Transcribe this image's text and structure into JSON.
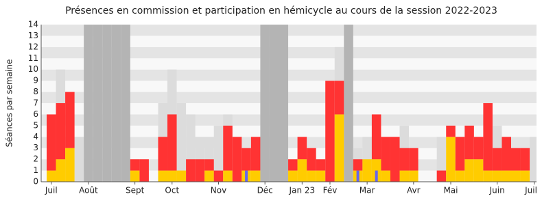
{
  "chart_data": {
    "type": "bar",
    "title": "Présences en commission et participation en hémicycle au cours de la session 2022-2023",
    "y_label": "Séances par semaine",
    "categories": [
      "Juil",
      null,
      null,
      null,
      "Août",
      null,
      null,
      null,
      null,
      "Sept",
      null,
      null,
      null,
      "Oct",
      null,
      null,
      null,
      null,
      "Nov",
      null,
      null,
      null,
      null,
      "Déc",
      null,
      null,
      null,
      "Jan 23",
      null,
      null,
      "Fév",
      null,
      null,
      null,
      "Mar",
      null,
      null,
      null,
      null,
      "Avr",
      null,
      null,
      null,
      "Mai",
      null,
      null,
      null,
      null,
      "Juin",
      null,
      null,
      null,
      "Juil"
    ],
    "series": [
      {
        "color": "#b4b4b4",
        "values": [
          null,
          null,
          null,
          null,
          14,
          14,
          14,
          14,
          14,
          null,
          null,
          null,
          null,
          null,
          null,
          null,
          null,
          null,
          null,
          null,
          null,
          null,
          null,
          14,
          14,
          14,
          null,
          null,
          null,
          null,
          null,
          null,
          14,
          null,
          null,
          null,
          null,
          null,
          null,
          null,
          null,
          null,
          null,
          null,
          null,
          null,
          null,
          null,
          null,
          null,
          null,
          null,
          null
        ]
      },
      {
        "color": "#dcdcdc",
        "values": [
          null,
          10,
          null,
          4,
          null,
          null,
          null,
          null,
          null,
          null,
          null,
          null,
          7,
          10,
          7,
          6,
          4,
          4,
          5,
          6,
          null,
          null,
          null,
          null,
          null,
          null,
          null,
          null,
          null,
          null,
          null,
          12,
          null,
          3,
          4,
          null,
          null,
          null,
          5,
          null,
          null,
          null,
          4,
          null,
          null,
          null,
          null,
          null,
          5,
          null,
          null,
          null,
          4
        ]
      },
      {
        "color": "#ffcc00",
        "values": [
          1,
          2,
          3,
          null,
          null,
          null,
          null,
          null,
          null,
          1,
          null,
          null,
          1,
          1,
          1,
          null,
          null,
          1,
          null,
          1,
          null,
          1,
          1,
          null,
          null,
          null,
          1,
          2,
          1,
          1,
          null,
          6,
          null,
          1,
          2,
          2,
          1,
          null,
          1,
          1,
          null,
          null,
          null,
          4,
          1,
          2,
          2,
          1,
          1,
          1,
          1,
          1,
          null
        ]
      },
      {
        "color": "#ff3333",
        "values": [
          5,
          5,
          5,
          null,
          null,
          null,
          null,
          null,
          null,
          1,
          2,
          null,
          3,
          5,
          null,
          2,
          2,
          1,
          1,
          4,
          4,
          2,
          3,
          null,
          null,
          null,
          1,
          2,
          2,
          1,
          9,
          3,
          null,
          1,
          null,
          4,
          3,
          4,
          2,
          2,
          null,
          null,
          1,
          1,
          3,
          3,
          2,
          6,
          2,
          3,
          2,
          2,
          null
        ]
      },
      {
        "color": "#6666ee",
        "values": [
          null,
          null,
          null,
          null,
          null,
          null,
          null,
          null,
          null,
          null,
          null,
          null,
          null,
          null,
          null,
          null,
          null,
          null,
          null,
          null,
          null,
          1,
          null,
          null,
          null,
          null,
          null,
          null,
          null,
          null,
          null,
          null,
          null,
          1,
          null,
          1,
          null,
          null,
          null,
          null,
          null,
          null,
          null,
          null,
          null,
          null,
          null,
          null,
          null,
          null,
          null,
          null,
          null
        ]
      }
    ],
    "ylim": [
      0,
      14
    ],
    "yticks": [
      0,
      1,
      2,
      3,
      4,
      5,
      6,
      7,
      8,
      9,
      10,
      11,
      12,
      13,
      14
    ],
    "grid": true
  }
}
